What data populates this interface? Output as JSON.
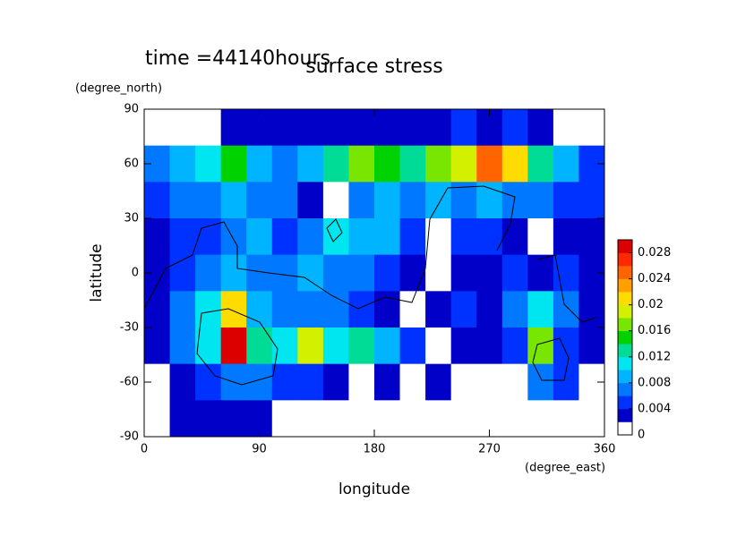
{
  "chart_data": {
    "type": "contour",
    "title": "surface stress",
    "subtitle": "time =44140hours",
    "xlabel": "longitude",
    "xunit": "(degree_east)",
    "ylabel": "latitude",
    "yunit": "(degree_north)",
    "xlim": [
      0,
      360
    ],
    "xticks": [
      0,
      90,
      180,
      270,
      360
    ],
    "ylim": [
      -90,
      90
    ],
    "yticks": [
      -90,
      -60,
      -30,
      0,
      30,
      60,
      90
    ],
    "x": [
      10,
      30,
      50,
      70,
      90,
      110,
      130,
      150,
      170,
      190,
      210,
      230,
      250,
      270,
      290,
      310,
      330,
      350
    ],
    "y": [
      80,
      60,
      40,
      20,
      0,
      -20,
      -40,
      -60,
      -80
    ],
    "z": [
      [
        0.001,
        0.001,
        0.001,
        0.003,
        0.003,
        0.003,
        0.003,
        0.003,
        0.003,
        0.003,
        0.003,
        0.003,
        0.004,
        0.003,
        0.004,
        0.003,
        0.001,
        0.001
      ],
      [
        0.006,
        0.008,
        0.01,
        0.014,
        0.008,
        0.006,
        0.008,
        0.012,
        0.016,
        0.014,
        0.012,
        0.016,
        0.018,
        0.024,
        0.02,
        0.012,
        0.008,
        0.004
      ],
      [
        0.004,
        0.006,
        0.006,
        0.008,
        0.006,
        0.006,
        0.003,
        0.001,
        0.006,
        0.008,
        0.006,
        0.008,
        0.006,
        0.008,
        0.006,
        0.006,
        0.004,
        0.004
      ],
      [
        0.002,
        0.004,
        0.004,
        0.006,
        0.008,
        0.004,
        0.006,
        0.01,
        0.008,
        0.008,
        0.004,
        0.001,
        0.004,
        0.004,
        0.003,
        0.001,
        0.003,
        0.002
      ],
      [
        0.003,
        0.004,
        0.006,
        0.008,
        0.006,
        0.006,
        0.008,
        0.006,
        0.006,
        0.004,
        0.003,
        0.001,
        0.003,
        0.002,
        0.004,
        0.003,
        0.004,
        0.003
      ],
      [
        0.003,
        0.006,
        0.01,
        0.02,
        0.008,
        0.006,
        0.006,
        0.006,
        0.004,
        0.002,
        0.001,
        0.002,
        0.004,
        0.003,
        0.006,
        0.01,
        0.006,
        0.003
      ],
      [
        0.002,
        0.006,
        0.01,
        0.028,
        0.012,
        0.01,
        0.018,
        0.01,
        0.012,
        0.008,
        0.004,
        0.001,
        0.003,
        0.002,
        0.004,
        0.016,
        0.004,
        0.002
      ],
      [
        0.001,
        0.002,
        0.004,
        0.006,
        0.006,
        0.004,
        0.004,
        0.002,
        0.001,
        0.003,
        0.001,
        0.003,
        0.001,
        0.001,
        0.001,
        0.006,
        0.004,
        0.001
      ],
      [
        0.001,
        0.002,
        0.002,
        0.002,
        0.002,
        0.001,
        0.001,
        0.001,
        0.001,
        0.001,
        0.001,
        0.001,
        0.001,
        0.001,
        0.001,
        0.001,
        0.001,
        0.001
      ]
    ],
    "zlim": [
      0,
      0.03
    ],
    "zticks": [
      0,
      0.004,
      0.008,
      0.012,
      0.016,
      0.02,
      0.024,
      0.028
    ],
    "colors": [
      "#ffffff",
      "#0000c8",
      "#0032ff",
      "#0078ff",
      "#00b4ff",
      "#00e6f0",
      "#00dc96",
      "#00d200",
      "#78e600",
      "#d2f000",
      "#ffdc00",
      "#ffa000",
      "#ff6400",
      "#ff2800",
      "#dc0000"
    ]
  }
}
